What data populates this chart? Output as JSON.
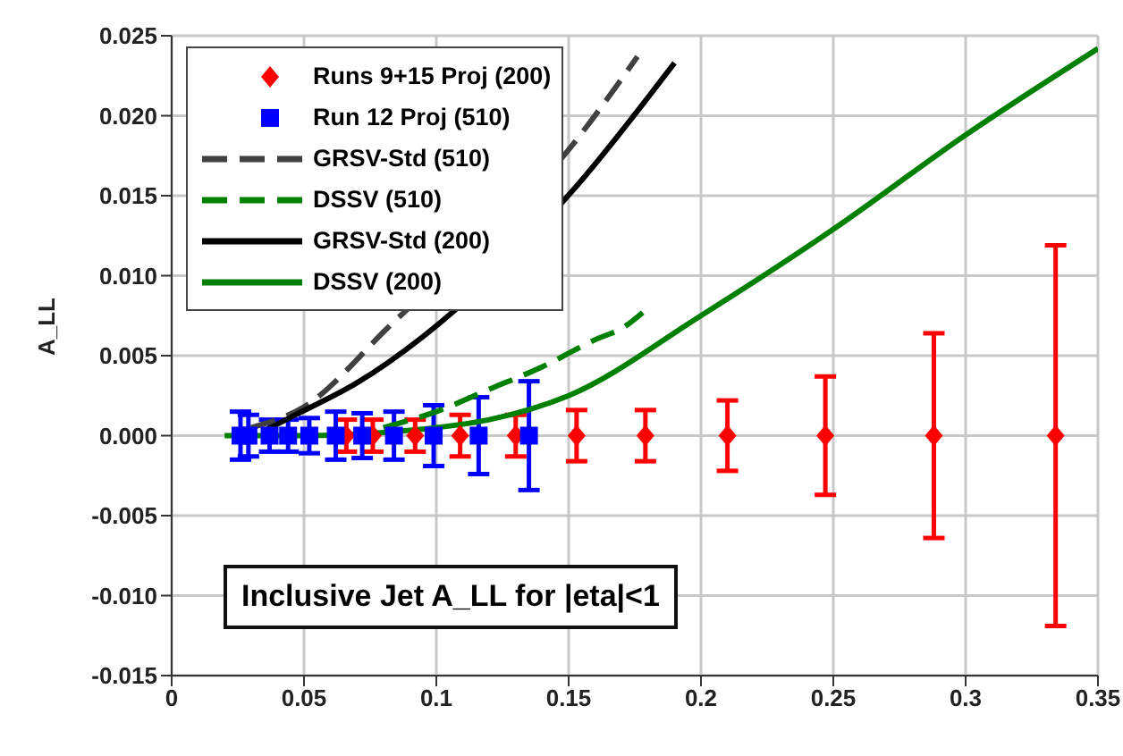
{
  "chart_data": {
    "type": "line",
    "ylabel": "A_LL",
    "annotations": [
      "Inclusive Jet A_LL for |eta|<1"
    ],
    "xlim": [
      0,
      0.35
    ],
    "xticks": [
      0,
      0.05,
      0.1,
      0.15,
      0.2,
      0.25,
      0.3,
      0.35
    ],
    "ylim": [
      -0.015,
      0.025
    ],
    "yticks": [
      {
        "value": -0.015,
        "label": "-0.015"
      },
      {
        "value": -0.01,
        "label": "-0.010"
      },
      {
        "value": -0.005,
        "label": "-0.005"
      },
      {
        "value": 0,
        "label": "0.000"
      },
      {
        "value": 0.005,
        "label": "0.005"
      },
      {
        "value": 0.01,
        "label": "0.010"
      },
      {
        "value": 0.015,
        "label": "0.015"
      },
      {
        "value": 0.02,
        "label": "0.020"
      },
      {
        "value": 0.025,
        "label": "0.025"
      }
    ],
    "grid": true,
    "legend": "top left",
    "series": [
      {
        "name": "Runs 9+15 Proj (200)",
        "type": "scatter",
        "marker": "diamond",
        "color": "#ff0000",
        "x": [
          0.066,
          0.076,
          0.092,
          0.109,
          0.13,
          0.153,
          0.179,
          0.21,
          0.247,
          0.288,
          0.334
        ],
        "values": [
          0,
          0,
          0,
          0,
          0,
          0,
          0,
          0,
          0,
          0,
          0
        ],
        "errors": [
          0.001,
          0.001,
          0.001,
          0.0013,
          0.0013,
          0.0016,
          0.0016,
          0.0022,
          0.0037,
          0.0064,
          0.0119
        ]
      },
      {
        "name": "Run 12 Proj (510)",
        "type": "scatter",
        "marker": "square",
        "color": "#0000ff",
        "x": [
          0.026,
          0.029,
          0.037,
          0.044,
          0.052,
          0.062,
          0.072,
          0.084,
          0.099,
          0.116,
          0.135
        ],
        "values": [
          0,
          0,
          0,
          0,
          0,
          0,
          0,
          0,
          0,
          0,
          0
        ],
        "errors": [
          0.0015,
          0.0013,
          0.001,
          0.001,
          0.0011,
          0.0015,
          0.0014,
          0.0015,
          0.0019,
          0.0024,
          0.0034
        ]
      },
      {
        "name": "GRSV-Std (510)",
        "type": "line",
        "line_style": "dashed",
        "marker": "none",
        "color": "#404040",
        "x": [
          0.03,
          0.05,
          0.082,
          0.153,
          0.176
        ],
        "values": [
          0.0005,
          0.0018,
          0.0068,
          0.0185,
          0.0237
        ]
      },
      {
        "name": "DSSV (510)",
        "type": "line",
        "line_style": "dashed",
        "marker": "none",
        "color": "#008000",
        "x": [
          0.08,
          0.1016,
          0.12,
          0.14,
          0.16,
          0.171,
          0.178
        ],
        "values": [
          0.0005,
          0.0016,
          0.0029,
          0.0043,
          0.006,
          0.0068,
          0.0077
        ]
      },
      {
        "name": "GRSV-Std (200)",
        "type": "line",
        "line_style": "solid",
        "marker": "none",
        "color": "#000000",
        "x": [
          0.035,
          0.048,
          0.07,
          0.095,
          0.153,
          0.19
        ],
        "values": [
          0.0003,
          0.0014,
          0.0033,
          0.0062,
          0.0156,
          0.0233
        ]
      },
      {
        "name": "DSSV (200)",
        "type": "line",
        "line_style": "solid",
        "marker": "none",
        "color": "#008000",
        "x": [
          0.02,
          0.05,
          0.08,
          0.1,
          0.12,
          0.15,
          0.2,
          0.25,
          0.3,
          0.35
        ],
        "values": [
          0,
          0,
          0.0002,
          0.0005,
          0.001,
          0.0025,
          0.0075,
          0.0129,
          0.0188,
          0.0242
        ]
      }
    ]
  }
}
